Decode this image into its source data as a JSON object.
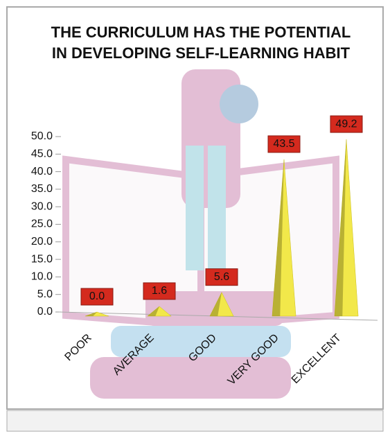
{
  "chart_data": {
    "type": "pyramid",
    "title": "THE CURRICULUM HAS THE POTENTIAL IN DEVELOPING SELF-LEARNING HABIT",
    "categories": [
      "POOR",
      "AVERAGE",
      "GOOD",
      "VERY GOOD",
      "EXCELLENT"
    ],
    "values": [
      0.0,
      1.6,
      5.6,
      43.5,
      49.2
    ],
    "value_labels": [
      "0.0",
      "1.6",
      "5.6",
      "43.5",
      "49.2"
    ],
    "color": "#f2e84a",
    "ylim": [
      0,
      50
    ],
    "yticks": [
      {
        "value": 0,
        "label": "0.0"
      },
      {
        "value": 5,
        "label": "5.0"
      },
      {
        "value": 10,
        "label": "10.0"
      },
      {
        "value": 15,
        "label": "15.0"
      },
      {
        "value": 20,
        "label": "20.0"
      },
      {
        "value": 25,
        "label": "25.0"
      },
      {
        "value": 30,
        "label": "30.0"
      },
      {
        "value": 35,
        "label": "35.0"
      },
      {
        "value": 40,
        "label": "40.0"
      },
      {
        "value": 45,
        "label": "45.0"
      },
      {
        "value": 50,
        "label": "50.0"
      }
    ]
  }
}
